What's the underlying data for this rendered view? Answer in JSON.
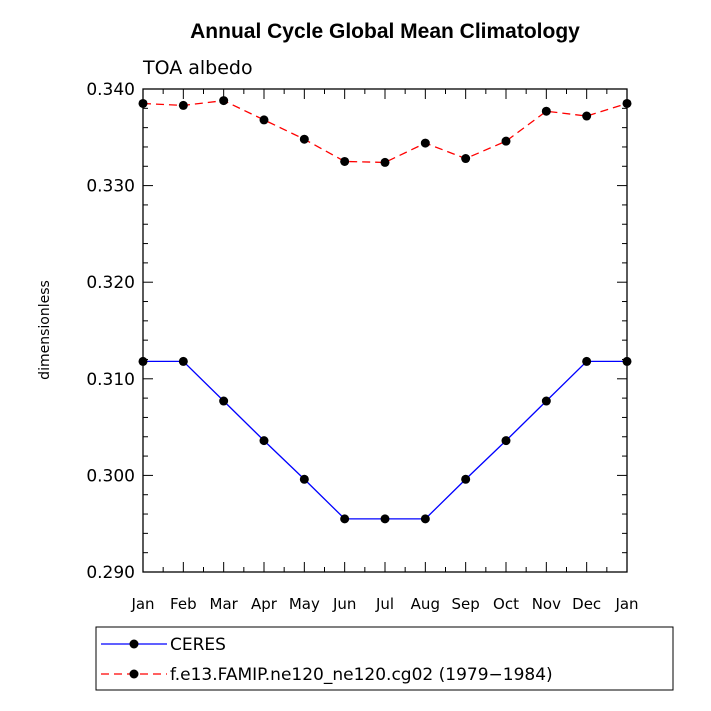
{
  "chart_data": {
    "type": "line",
    "title": "Annual Cycle Global Mean Climatology",
    "subtitle": "TOA albedo",
    "xlabel": "",
    "ylabel": "dimensionless",
    "categories": [
      "Jan",
      "Feb",
      "Mar",
      "Apr",
      "May",
      "Jun",
      "Jul",
      "Aug",
      "Sep",
      "Oct",
      "Nov",
      "Dec",
      "Jan"
    ],
    "ylim": [
      0.29,
      0.34
    ],
    "yticks": [
      "0.290",
      "0.300",
      "0.310",
      "0.320",
      "0.330",
      "0.340"
    ],
    "ytick_values": [
      0.29,
      0.3,
      0.31,
      0.32,
      0.33,
      0.34
    ],
    "series": [
      {
        "name": "CERES",
        "color": "#0000ff",
        "dash": "solid",
        "values": [
          0.3118,
          0.3118,
          0.3077,
          0.3036,
          0.2996,
          0.2955,
          0.2955,
          0.2955,
          0.2996,
          0.3036,
          0.3077,
          0.3118,
          0.3118
        ]
      },
      {
        "name": "f.e13.FAMIP.ne120_ne120.cg02 (1979−1984)",
        "color": "#ff0000",
        "dash": "dashed",
        "values": [
          0.3385,
          0.3383,
          0.3388,
          0.3368,
          0.3348,
          0.3325,
          0.3324,
          0.3344,
          0.3328,
          0.3346,
          0.3377,
          0.3372,
          0.3385
        ]
      }
    ],
    "legend_position": "bottom-left"
  }
}
